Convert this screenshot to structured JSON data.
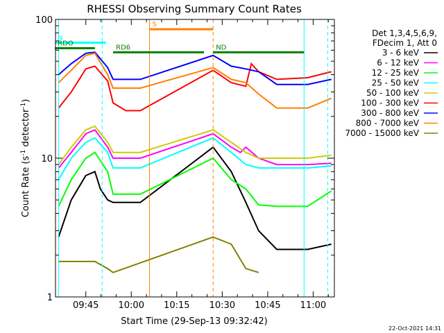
{
  "chart_data": {
    "type": "line",
    "title": "RHESSI Observing Summary Count Rates",
    "xlabel": "Start Time (29-Sep-13 09:32:42)",
    "ylabel": "Count Rate (s",
    "ylabel_sup": "-1",
    "ylabel_tail": " detector",
    "ylabel_close": ")",
    "yscale": "log",
    "ylim": [
      1,
      100
    ],
    "y_ticklabels": [
      "1",
      "10",
      "100"
    ],
    "xlim": [
      "09:35",
      "11:07"
    ],
    "x_ticklabels": [
      "09:45",
      "10:00",
      "10:15",
      "10:30",
      "10:45",
      "11:00"
    ],
    "x_ticks_minutes": [
      585,
      600,
      615,
      630,
      645,
      660
    ],
    "legend_position": "right",
    "legend_header": [
      "Det 1,3,4,5,6,9,",
      "FDecim 1, Att 0"
    ],
    "series": [
      {
        "name": "3 - 6 keV",
        "color": "#000000",
        "points": [
          [
            9.6,
            2.7
          ],
          [
            9.67,
            5.0
          ],
          [
            9.75,
            7.5
          ],
          [
            9.8,
            8.0
          ],
          [
            9.83,
            6.0
          ],
          [
            9.87,
            5.0
          ],
          [
            9.9,
            4.8
          ],
          [
            10.05,
            4.8
          ],
          [
            10.45,
            12
          ],
          [
            10.55,
            8
          ],
          [
            10.63,
            4.8
          ],
          [
            10.7,
            3.0
          ],
          [
            10.8,
            2.2
          ],
          [
            10.97,
            2.2
          ],
          [
            11.1,
            2.4
          ]
        ]
      },
      {
        "name": "6 - 12 keV",
        "color": "#ff00ff",
        "points": [
          [
            9.6,
            8.5
          ],
          [
            9.67,
            11
          ],
          [
            9.75,
            15
          ],
          [
            9.8,
            16
          ],
          [
            9.87,
            12
          ],
          [
            9.9,
            10
          ],
          [
            10.05,
            10
          ],
          [
            10.45,
            15
          ],
          [
            10.55,
            12
          ],
          [
            10.6,
            11
          ],
          [
            10.63,
            12
          ],
          [
            10.7,
            10
          ],
          [
            10.8,
            9
          ],
          [
            10.97,
            9
          ],
          [
            11.1,
            9.2
          ]
        ]
      },
      {
        "name": "12 - 25 keV",
        "color": "#00ff00",
        "points": [
          [
            9.6,
            4.5
          ],
          [
            9.67,
            7.0
          ],
          [
            9.75,
            10
          ],
          [
            9.8,
            11
          ],
          [
            9.87,
            8
          ],
          [
            9.9,
            5.5
          ],
          [
            10.05,
            5.5
          ],
          [
            10.45,
            10
          ],
          [
            10.55,
            7
          ],
          [
            10.63,
            6
          ],
          [
            10.7,
            4.6
          ],
          [
            10.8,
            4.5
          ],
          [
            10.97,
            4.5
          ],
          [
            11.1,
            5.8
          ]
        ]
      },
      {
        "name": "25 - 50 keV",
        "color": "#00ffff",
        "points": [
          [
            9.6,
            7.0
          ],
          [
            9.67,
            10
          ],
          [
            9.75,
            13
          ],
          [
            9.8,
            14
          ],
          [
            9.87,
            11
          ],
          [
            9.9,
            8.5
          ],
          [
            10.05,
            8.5
          ],
          [
            10.45,
            14
          ],
          [
            10.55,
            11
          ],
          [
            10.63,
            9
          ],
          [
            10.7,
            8.5
          ],
          [
            10.8,
            8.5
          ],
          [
            10.97,
            8.5
          ],
          [
            11.1,
            8.8
          ]
        ]
      },
      {
        "name": "50 - 100 keV",
        "color": "#cccc00",
        "points": [
          [
            9.6,
            9.0
          ],
          [
            9.67,
            12
          ],
          [
            9.75,
            16
          ],
          [
            9.8,
            17
          ],
          [
            9.87,
            13
          ],
          [
            9.9,
            11
          ],
          [
            10.05,
            11
          ],
          [
            10.45,
            16
          ],
          [
            10.55,
            13
          ],
          [
            10.63,
            11
          ],
          [
            10.7,
            10
          ],
          [
            10.8,
            10
          ],
          [
            10.97,
            10
          ],
          [
            11.1,
            10.5
          ]
        ]
      },
      {
        "name": "100 - 300 keV",
        "color": "#ff0000",
        "points": [
          [
            9.6,
            23
          ],
          [
            9.67,
            30
          ],
          [
            9.75,
            44
          ],
          [
            9.8,
            46
          ],
          [
            9.87,
            36
          ],
          [
            9.9,
            25
          ],
          [
            9.97,
            22
          ],
          [
            10.05,
            22
          ],
          [
            10.45,
            43
          ],
          [
            10.55,
            35
          ],
          [
            10.63,
            33
          ],
          [
            10.66,
            48
          ],
          [
            10.7,
            42
          ],
          [
            10.8,
            37
          ],
          [
            10.97,
            38
          ],
          [
            11.1,
            42
          ]
        ]
      },
      {
        "name": "300 - 800 keV",
        "color": "#0000ff",
        "points": [
          [
            9.6,
            40
          ],
          [
            9.67,
            48
          ],
          [
            9.75,
            57
          ],
          [
            9.8,
            58
          ],
          [
            9.87,
            45
          ],
          [
            9.9,
            37
          ],
          [
            10.05,
            37
          ],
          [
            10.45,
            55
          ],
          [
            10.55,
            46
          ],
          [
            10.63,
            44
          ],
          [
            10.7,
            42
          ],
          [
            10.8,
            34
          ],
          [
            10.97,
            34
          ],
          [
            11.1,
            37
          ]
        ]
      },
      {
        "name": "800 - 7000 keV",
        "color": "#ff8000",
        "points": [
          [
            9.6,
            35
          ],
          [
            9.67,
            43
          ],
          [
            9.75,
            55
          ],
          [
            9.8,
            57
          ],
          [
            9.87,
            40
          ],
          [
            9.9,
            32
          ],
          [
            10.05,
            32
          ],
          [
            10.45,
            45
          ],
          [
            10.55,
            37
          ],
          [
            10.63,
            35
          ],
          [
            10.7,
            29
          ],
          [
            10.8,
            23
          ],
          [
            10.97,
            23
          ],
          [
            11.1,
            27
          ]
        ]
      },
      {
        "name": "7000 - 15000 keV",
        "color": "#808000",
        "points": [
          [
            9.6,
            1.8
          ],
          [
            9.67,
            1.8
          ],
          [
            9.75,
            1.8
          ],
          [
            9.8,
            1.8
          ],
          [
            9.87,
            1.6
          ],
          [
            9.9,
            1.5
          ],
          [
            10.45,
            2.7
          ],
          [
            10.55,
            2.4
          ],
          [
            10.63,
            1.6
          ],
          [
            10.7,
            1.5
          ]
        ]
      }
    ],
    "annotations": {
      "flags": [
        {
          "label": "N",
          "color": "#00ffff",
          "x": [
            9.58,
            9.86
          ],
          "y": 68
        },
        {
          "label": "RDO",
          "color": "#008000",
          "x": [
            9.58,
            9.8
          ],
          "y": 62
        },
        {
          "label": "RD6",
          "color": "#008000",
          "x": [
            9.9,
            10.4
          ],
          "y": 58
        },
        {
          "label": "S",
          "color": "#ff8000",
          "x": [
            10.1,
            10.45
          ],
          "y": 85
        },
        {
          "label": "ND",
          "color": "#008000",
          "x": [
            10.45,
            10.95
          ],
          "y": 58
        }
      ],
      "vertical_lines": [
        {
          "x": 9.6,
          "color": "#00ffff",
          "style": "solid"
        },
        {
          "x": 9.84,
          "color": "#00ffff",
          "style": "dashed"
        },
        {
          "x": 10.1,
          "color": "#ff8000",
          "style": "solid"
        },
        {
          "x": 10.45,
          "color": "#ff8000",
          "style": "dashed"
        },
        {
          "x": 10.95,
          "color": "#00ffff",
          "style": "solid"
        },
        {
          "x": 11.08,
          "color": "#00ffff",
          "style": "dashed"
        }
      ]
    }
  },
  "footer_timestamp": "22-Oct-2021 14:31"
}
